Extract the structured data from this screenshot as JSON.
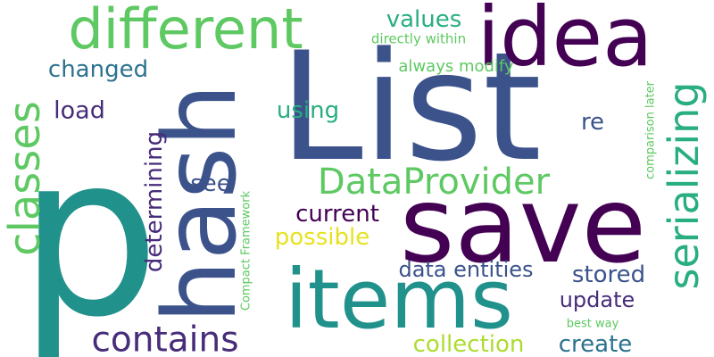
{
  "colors": {
    "background": "#ffffff",
    "viridis_purple": "#440154",
    "viridis_indigo": "#472c7a",
    "viridis_blue": "#3b528b",
    "viridis_steel": "#2c728e",
    "viridis_teal": "#21918c",
    "viridis_sea": "#28ae80",
    "viridis_green": "#5ec962",
    "viridis_lime": "#addc30",
    "viridis_yellow": "#e7e21f"
  },
  "words": [
    {
      "text": "p"
    },
    {
      "text": "List"
    },
    {
      "text": "save"
    },
    {
      "text": "hash"
    },
    {
      "text": "idea"
    },
    {
      "text": "items"
    },
    {
      "text": "different"
    },
    {
      "text": "serializing"
    },
    {
      "text": "classes"
    },
    {
      "text": "contains"
    },
    {
      "text": "DataProvider"
    },
    {
      "text": "values"
    },
    {
      "text": "directly within"
    },
    {
      "text": "changed"
    },
    {
      "text": "always modify"
    },
    {
      "text": "load"
    },
    {
      "text": "using"
    },
    {
      "text": "re"
    },
    {
      "text": "determining"
    },
    {
      "text": "see"
    },
    {
      "text": "current"
    },
    {
      "text": "possible"
    },
    {
      "text": "data entities"
    },
    {
      "text": "stored"
    },
    {
      "text": "update"
    },
    {
      "text": "collection"
    },
    {
      "text": "create"
    },
    {
      "text": "Compact Framework"
    },
    {
      "text": "comparison later"
    },
    {
      "text": "best way"
    }
  ]
}
